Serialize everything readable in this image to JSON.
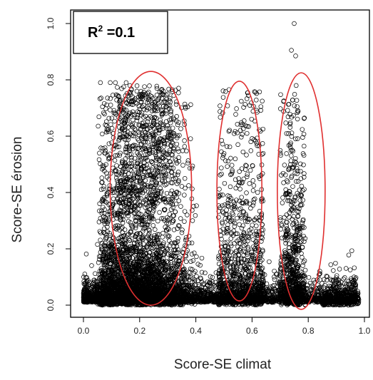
{
  "chart_data": {
    "type": "scatter",
    "title": "",
    "xlabel": "Score-SE climat",
    "ylabel": "Score-SE érosion",
    "xlim": [
      0.0,
      1.0
    ],
    "ylim": [
      0.0,
      1.0
    ],
    "xticks": [
      "0.0",
      "0.2",
      "0.4",
      "0.6",
      "0.8",
      "1.0"
    ],
    "yticks": [
      "0.0",
      "0.2",
      "0.4",
      "0.6",
      "0.8",
      "1.0"
    ],
    "marker": "open-circle",
    "marker_color": "#000000",
    "grid": false,
    "annotation": {
      "r2_label": "R",
      "r2_sup": "2",
      "r2_value": " =0.1"
    },
    "highlight_ellipses": [
      {
        "cx": 0.24,
        "cy": 0.415,
        "rx": 0.145,
        "ry": 0.415,
        "color": "#e03030"
      },
      {
        "cx": 0.555,
        "cy": 0.405,
        "rx": 0.08,
        "ry": 0.39,
        "color": "#e03030"
      },
      {
        "cx": 0.775,
        "cy": 0.405,
        "rx": 0.085,
        "ry": 0.42,
        "color": "#e03030"
      }
    ],
    "clusters": [
      {
        "x_range": [
          0.0,
          0.43
        ],
        "density": "very high",
        "y_peak": 0.78
      },
      {
        "x_range": [
          0.45,
          0.65
        ],
        "density": "high",
        "y_peak": 0.77
      },
      {
        "x_range": [
          0.68,
          0.88
        ],
        "density": "medium",
        "y_peak": 1.0
      },
      {
        "x_range": [
          0.85,
          1.0
        ],
        "density": "low",
        "y_peak": 0.1
      }
    ]
  }
}
